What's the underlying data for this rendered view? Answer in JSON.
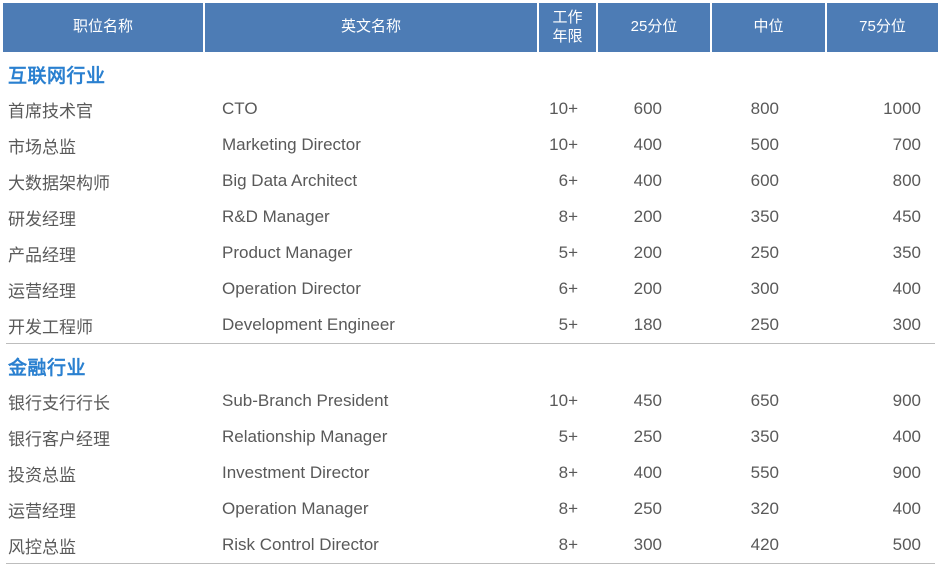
{
  "colors": {
    "header_bg": "#4D7CB5",
    "header_text": "#FFFFFF",
    "section_title_text": "#2A80D0",
    "body_text": "#595959",
    "divider": "#BDBDBD"
  },
  "table": {
    "columns": [
      {
        "key": "position-cn",
        "label": "职位名称"
      },
      {
        "key": "position-en",
        "label": "英文名称"
      },
      {
        "key": "years",
        "label": "工作\n年限"
      },
      {
        "key": "p25",
        "label": "25分位"
      },
      {
        "key": "p50",
        "label": "中位"
      },
      {
        "key": "p75",
        "label": "75分位"
      }
    ],
    "sections": [
      {
        "title": "互联网行业",
        "rows": [
          [
            "首席技术官",
            "CTO",
            "10+",
            "600",
            "800",
            "1000"
          ],
          [
            "市场总监",
            "Marketing Director",
            "10+",
            "400",
            "500",
            "700"
          ],
          [
            "大数据架构师",
            "Big Data Architect",
            "6+",
            "400",
            "600",
            "800"
          ],
          [
            "研发经理",
            "R&D Manager",
            "8+",
            "200",
            "350",
            "450"
          ],
          [
            "产品经理",
            "Product Manager",
            "5+",
            "200",
            "250",
            "350"
          ],
          [
            "运营经理",
            "Operation Director",
            "6+",
            "200",
            "300",
            "400"
          ],
          [
            "开发工程师",
            "Development Engineer",
            "5+",
            "180",
            "250",
            "300"
          ]
        ]
      },
      {
        "title": "金融行业",
        "rows": [
          [
            "银行支行行长",
            "Sub-Branch President",
            "10+",
            "450",
            "650",
            "900"
          ],
          [
            "银行客户经理",
            "Relationship Manager",
            "5+",
            "250",
            "350",
            "400"
          ],
          [
            "投资总监",
            "Investment Director",
            "8+",
            "400",
            "550",
            "900"
          ],
          [
            "运营经理",
            "Operation Manager",
            "8+",
            "250",
            "320",
            "400"
          ],
          [
            "风控总监",
            "Risk Control Director",
            "8+",
            "300",
            "420",
            "500"
          ]
        ]
      }
    ]
  }
}
